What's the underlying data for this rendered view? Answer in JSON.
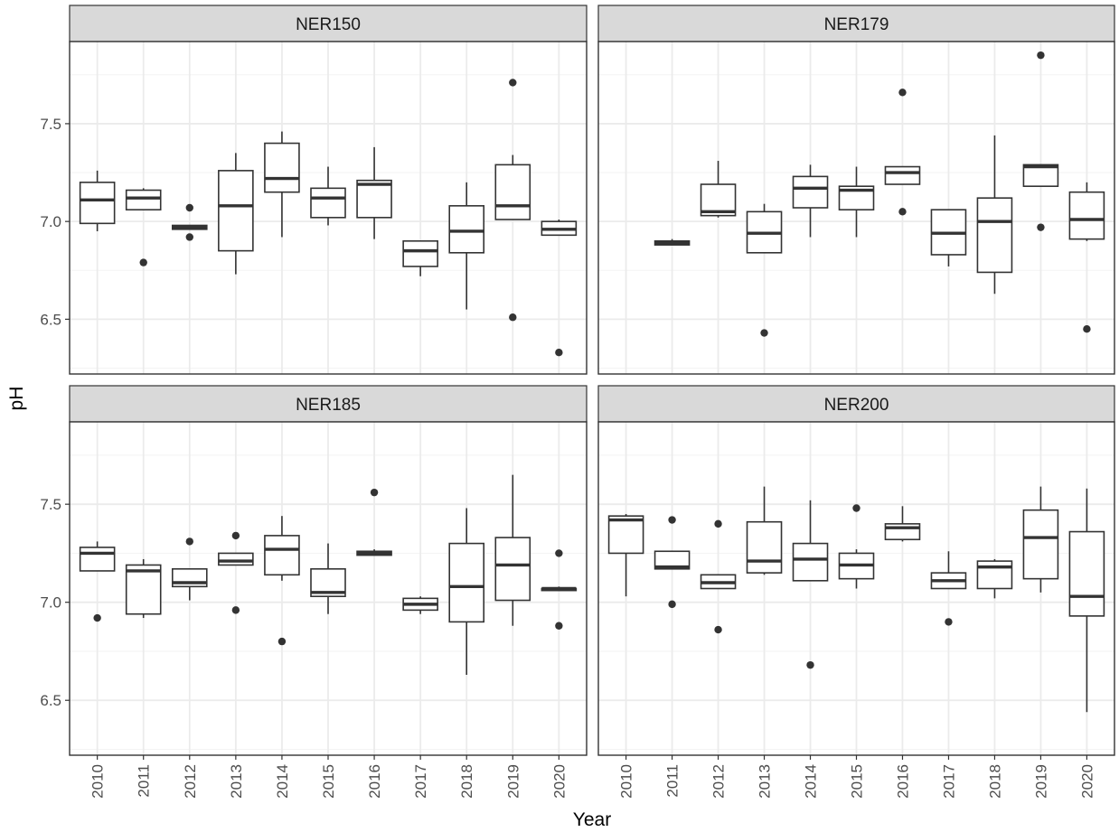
{
  "chart_data": {
    "type": "boxplot",
    "xlabel": "Year",
    "ylabel": "pH",
    "ylim": [
      6.22,
      7.92
    ],
    "y_ticks": [
      6.5,
      7.0,
      7.5
    ],
    "y_tick_labels": [
      "6.5",
      "7.0",
      "7.5"
    ],
    "categories": [
      "2010",
      "2011",
      "2012",
      "2013",
      "2014",
      "2015",
      "2016",
      "2017",
      "2018",
      "2019",
      "2020"
    ],
    "grid": true,
    "legend": "none",
    "colors": {
      "box": "#333333",
      "grid": "#ebebeb",
      "strip": "#d9d9d9",
      "panel_border": "#333333"
    },
    "panels": [
      {
        "title": "NER150",
        "boxes": [
          {
            "year": "2010",
            "low": 6.95,
            "q1": 6.99,
            "median": 7.11,
            "q3": 7.2,
            "high": 7.26,
            "outliers": []
          },
          {
            "year": "2011",
            "low": 7.06,
            "q1": 7.06,
            "median": 7.12,
            "q3": 7.16,
            "high": 7.17,
            "outliers": [
              6.79
            ]
          },
          {
            "year": "2012",
            "low": 6.96,
            "q1": 6.96,
            "median": 6.97,
            "q3": 6.98,
            "high": 6.98,
            "outliers": [
              7.07,
              6.92
            ]
          },
          {
            "year": "2013",
            "low": 6.73,
            "q1": 6.85,
            "median": 7.08,
            "q3": 7.26,
            "high": 7.35,
            "outliers": []
          },
          {
            "year": "2014",
            "low": 6.92,
            "q1": 7.15,
            "median": 7.22,
            "q3": 7.4,
            "high": 7.46,
            "outliers": []
          },
          {
            "year": "2015",
            "low": 6.98,
            "q1": 7.02,
            "median": 7.12,
            "q3": 7.17,
            "high": 7.28,
            "outliers": []
          },
          {
            "year": "2016",
            "low": 6.91,
            "q1": 7.02,
            "median": 7.19,
            "q3": 7.21,
            "high": 7.38,
            "outliers": []
          },
          {
            "year": "2017",
            "low": 6.72,
            "q1": 6.77,
            "median": 6.85,
            "q3": 6.9,
            "high": 6.9,
            "outliers": []
          },
          {
            "year": "2018",
            "low": 6.55,
            "q1": 6.84,
            "median": 6.95,
            "q3": 7.08,
            "high": 7.2,
            "outliers": []
          },
          {
            "year": "2019",
            "low": 7.01,
            "q1": 7.01,
            "median": 7.08,
            "q3": 7.29,
            "high": 7.34,
            "outliers": [
              7.71,
              6.51
            ]
          },
          {
            "year": "2020",
            "low": 6.93,
            "q1": 6.93,
            "median": 6.96,
            "q3": 7.0,
            "high": 7.01,
            "outliers": [
              6.33
            ]
          }
        ]
      },
      {
        "title": "NER179",
        "boxes": [
          {
            "year": "2011",
            "low": 6.88,
            "q1": 6.88,
            "median": 6.89,
            "q3": 6.9,
            "high": 6.91,
            "outliers": []
          },
          {
            "year": "2012",
            "low": 7.02,
            "q1": 7.03,
            "median": 7.05,
            "q3": 7.19,
            "high": 7.31,
            "outliers": []
          },
          {
            "year": "2013",
            "low": 6.84,
            "q1": 6.84,
            "median": 6.94,
            "q3": 7.05,
            "high": 7.09,
            "outliers": [
              6.43
            ]
          },
          {
            "year": "2014",
            "low": 6.92,
            "q1": 7.07,
            "median": 7.17,
            "q3": 7.23,
            "high": 7.29,
            "outliers": []
          },
          {
            "year": "2015",
            "low": 6.92,
            "q1": 7.06,
            "median": 7.16,
            "q3": 7.18,
            "high": 7.28,
            "outliers": []
          },
          {
            "year": "2016",
            "low": 7.19,
            "q1": 7.19,
            "median": 7.25,
            "q3": 7.28,
            "high": 7.28,
            "outliers": [
              7.66,
              7.05
            ]
          },
          {
            "year": "2017",
            "low": 6.77,
            "q1": 6.83,
            "median": 6.94,
            "q3": 7.06,
            "high": 7.06,
            "outliers": []
          },
          {
            "year": "2018",
            "low": 6.63,
            "q1": 6.74,
            "median": 7.0,
            "q3": 7.12,
            "high": 7.44,
            "outliers": []
          },
          {
            "year": "2019",
            "low": 7.18,
            "q1": 7.18,
            "median": 7.28,
            "q3": 7.29,
            "high": 7.29,
            "outliers": [
              7.85,
              6.97
            ]
          },
          {
            "year": "2020",
            "low": 6.9,
            "q1": 6.91,
            "median": 7.01,
            "q3": 7.15,
            "high": 7.2,
            "outliers": [
              6.45
            ]
          }
        ]
      },
      {
        "title": "NER185",
        "boxes": [
          {
            "year": "2010",
            "low": 7.16,
            "q1": 7.16,
            "median": 7.25,
            "q3": 7.28,
            "high": 7.31,
            "outliers": [
              6.92
            ]
          },
          {
            "year": "2011",
            "low": 6.92,
            "q1": 6.94,
            "median": 7.16,
            "q3": 7.19,
            "high": 7.22,
            "outliers": []
          },
          {
            "year": "2012",
            "low": 7.01,
            "q1": 7.08,
            "median": 7.1,
            "q3": 7.17,
            "high": 7.17,
            "outliers": [
              7.31
            ]
          },
          {
            "year": "2013",
            "low": 7.19,
            "q1": 7.19,
            "median": 7.21,
            "q3": 7.25,
            "high": 7.25,
            "outliers": [
              7.34,
              6.96
            ]
          },
          {
            "year": "2014",
            "low": 7.11,
            "q1": 7.14,
            "median": 7.27,
            "q3": 7.34,
            "high": 7.44,
            "outliers": [
              6.8
            ]
          },
          {
            "year": "2015",
            "low": 6.94,
            "q1": 7.03,
            "median": 7.05,
            "q3": 7.17,
            "high": 7.3,
            "outliers": []
          },
          {
            "year": "2016",
            "low": 7.24,
            "q1": 7.24,
            "median": 7.25,
            "q3": 7.26,
            "high": 7.27,
            "outliers": [
              7.56
            ]
          },
          {
            "year": "2017",
            "low": 6.94,
            "q1": 6.96,
            "median": 6.99,
            "q3": 7.02,
            "high": 7.03,
            "outliers": []
          },
          {
            "year": "2018",
            "low": 6.63,
            "q1": 6.9,
            "median": 7.08,
            "q3": 7.3,
            "high": 7.48,
            "outliers": []
          },
          {
            "year": "2019",
            "low": 6.88,
            "q1": 7.01,
            "median": 7.19,
            "q3": 7.33,
            "high": 7.65,
            "outliers": []
          },
          {
            "year": "2020",
            "low": 7.06,
            "q1": 7.06,
            "median": 7.07,
            "q3": 7.07,
            "high": 7.08,
            "outliers": [
              7.25,
              6.88
            ]
          }
        ]
      },
      {
        "title": "NER200",
        "boxes": [
          {
            "year": "2010",
            "low": 7.03,
            "q1": 7.25,
            "median": 7.42,
            "q3": 7.44,
            "high": 7.45,
            "outliers": []
          },
          {
            "year": "2011",
            "low": 7.17,
            "q1": 7.17,
            "median": 7.18,
            "q3": 7.26,
            "high": 7.26,
            "outliers": [
              7.42,
              6.99
            ]
          },
          {
            "year": "2012",
            "low": 7.07,
            "q1": 7.07,
            "median": 7.1,
            "q3": 7.14,
            "high": 7.14,
            "outliers": [
              7.4,
              6.86
            ]
          },
          {
            "year": "2013",
            "low": 7.14,
            "q1": 7.15,
            "median": 7.21,
            "q3": 7.41,
            "high": 7.59,
            "outliers": []
          },
          {
            "year": "2014",
            "low": 7.11,
            "q1": 7.11,
            "median": 7.22,
            "q3": 7.3,
            "high": 7.52,
            "outliers": [
              6.68
            ]
          },
          {
            "year": "2015",
            "low": 7.07,
            "q1": 7.12,
            "median": 7.19,
            "q3": 7.25,
            "high": 7.27,
            "outliers": [
              7.48
            ]
          },
          {
            "year": "2016",
            "low": 7.31,
            "q1": 7.32,
            "median": 7.38,
            "q3": 7.4,
            "high": 7.49,
            "outliers": []
          },
          {
            "year": "2017",
            "low": 7.07,
            "q1": 7.07,
            "median": 7.11,
            "q3": 7.15,
            "high": 7.26,
            "outliers": [
              6.9
            ]
          },
          {
            "year": "2018",
            "low": 7.02,
            "q1": 7.07,
            "median": 7.18,
            "q3": 7.21,
            "high": 7.22,
            "outliers": []
          },
          {
            "year": "2019",
            "low": 7.05,
            "q1": 7.12,
            "median": 7.33,
            "q3": 7.47,
            "high": 7.59,
            "outliers": []
          },
          {
            "year": "2020",
            "low": 6.44,
            "q1": 6.93,
            "median": 7.03,
            "q3": 7.36,
            "high": 7.58,
            "outliers": []
          }
        ]
      }
    ]
  }
}
